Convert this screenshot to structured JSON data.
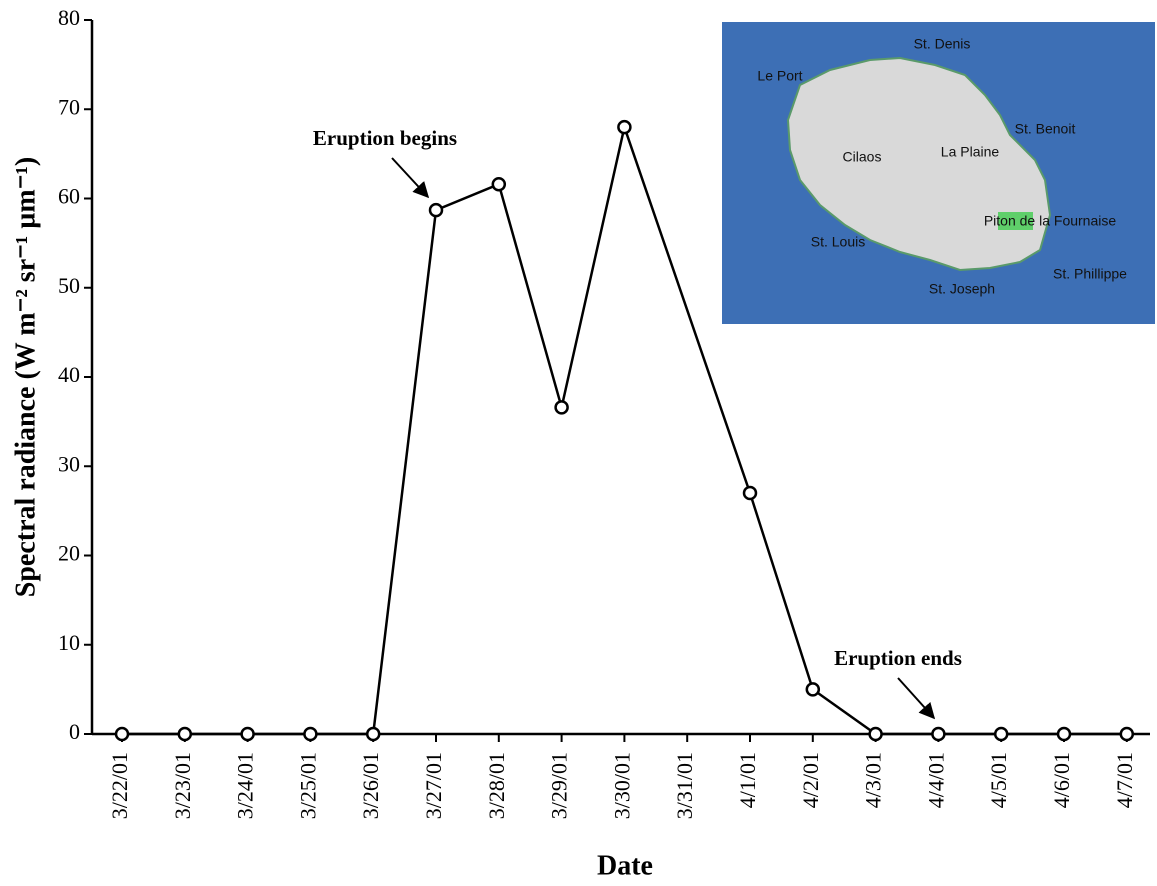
{
  "chart_data": {
    "type": "line",
    "x_label": "Date",
    "y_label": "Spectral radiance (W m⁻² sr⁻¹ µm⁻¹)",
    "xticks": [
      "3/22/01",
      "3/23/01",
      "3/24/01",
      "3/25/01",
      "3/26/01",
      "3/27/01",
      "3/28/01",
      "3/29/01",
      "3/30/01",
      "3/31/01",
      "4/1/01",
      "4/2/01",
      "4/3/01",
      "4/4/01",
      "4/5/01",
      "4/6/01",
      "4/7/01"
    ],
    "x": [
      "3/22/01",
      "3/23/01",
      "3/24/01",
      "3/25/01",
      "3/26/01",
      "3/27/01",
      "3/28/01",
      "3/29/01",
      "3/30/01",
      "4/1/01",
      "4/2/01",
      "4/3/01",
      "4/4/01",
      "4/5/01",
      "4/6/01",
      "4/7/01"
    ],
    "values": [
      0,
      0,
      0,
      0,
      0,
      58.7,
      61.6,
      36.6,
      68,
      27,
      5,
      0,
      0,
      0,
      0,
      0
    ],
    "color": "#000000",
    "ylim": [
      0,
      80
    ],
    "yticks": [
      0,
      10,
      20,
      30,
      40,
      50,
      60,
      70,
      80
    ],
    "annotations": [
      "Eruption begins",
      "Eruption ends"
    ],
    "map_labels": [
      "St. Denis",
      "Le Port",
      "St. Benoit",
      "Cilaos",
      "La Plaine",
      "Piton de la Fournaise",
      "St. Louis",
      "St. Joseph",
      "St. Phillippe"
    ]
  }
}
